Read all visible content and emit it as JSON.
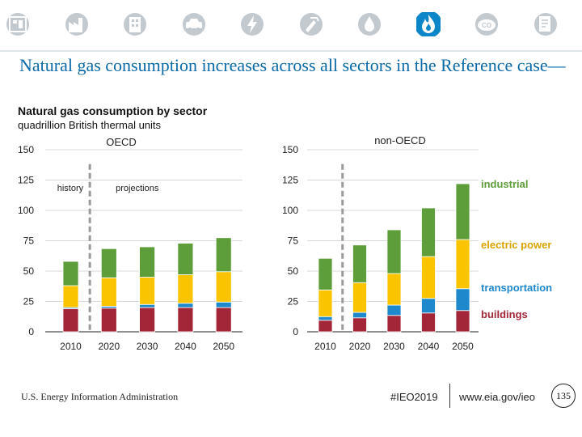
{
  "header": {
    "icons": [
      "overview-icon",
      "industry-icon",
      "buildings-icon",
      "transportation-icon",
      "electricity-icon",
      "coal-icon",
      "oil-icon",
      "natural-gas-icon",
      "co2-icon",
      "documents-icon"
    ],
    "active_icon": "natural-gas-icon",
    "active_color": "#0b86c8",
    "inactive_color": "#c2c9cf"
  },
  "slide_title": "Natural gas consumption increases across all sectors in the Reference case—",
  "chart_title": "Natural gas consumption by sector",
  "chart_subtitle": "quadrillion British thermal units",
  "chart_data": [
    {
      "type": "bar",
      "stacked": true,
      "title": "OECD",
      "categories": [
        "2010",
        "2020",
        "2030",
        "2040",
        "2050"
      ],
      "ylim": [
        0,
        150
      ],
      "yticks": [
        0,
        25,
        50,
        75,
        100,
        125,
        150
      ],
      "divider_label_left": "history",
      "divider_label_right": "projections",
      "series": [
        {
          "name": "buildings",
          "color": "#a32638",
          "values": [
            19,
            19.5,
            20,
            20,
            20
          ]
        },
        {
          "name": "transportation",
          "color": "#1e88cc",
          "values": [
            1,
            1.5,
            2.5,
            3.5,
            4.5
          ]
        },
        {
          "name": "electric power",
          "color": "#fac400",
          "values": [
            18,
            23.5,
            22.5,
            23.5,
            25
          ]
        },
        {
          "name": "industrial",
          "color": "#5e9e3a",
          "values": [
            20,
            24,
            25,
            26,
            28
          ]
        }
      ]
    },
    {
      "type": "bar",
      "stacked": true,
      "title": "non-OECD",
      "categories": [
        "2010",
        "2020",
        "2030",
        "2040",
        "2050"
      ],
      "ylim": [
        0,
        150
      ],
      "yticks": [
        0,
        25,
        50,
        75,
        100,
        125,
        150
      ],
      "series": [
        {
          "name": "buildings",
          "color": "#a32638",
          "values": [
            9.5,
            11.5,
            13.5,
            15.5,
            17.5
          ]
        },
        {
          "name": "transportation",
          "color": "#1e88cc",
          "values": [
            3,
            4.5,
            8.5,
            12,
            18
          ]
        },
        {
          "name": "electric power",
          "color": "#fac400",
          "values": [
            22,
            24.5,
            26,
            34.5,
            40.5
          ]
        },
        {
          "name": "industrial",
          "color": "#5e9e3a",
          "values": [
            26,
            31,
            36,
            40,
            46
          ]
        }
      ]
    }
  ],
  "footer": {
    "source": "U.S. Energy Information Administration",
    "hashtag": "#IEO2019",
    "url": "www.eia.gov/ieo",
    "page": "135"
  }
}
